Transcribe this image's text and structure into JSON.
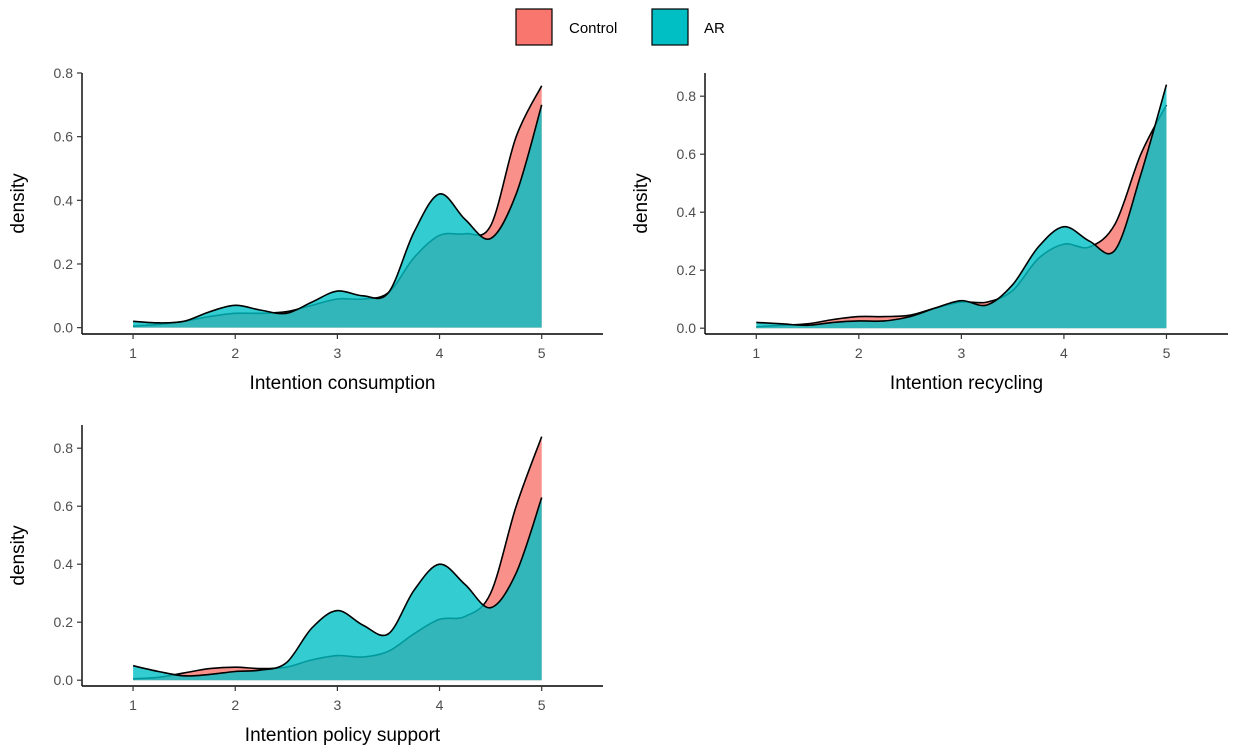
{
  "legend": {
    "items": [
      {
        "label": "Control",
        "color": "#F8766D"
      },
      {
        "label": "AR",
        "color": "#00BFC4"
      }
    ]
  },
  "chart_data": [
    {
      "type": "area",
      "xlabel": "Intention consumption",
      "ylabel": "density",
      "xlim": [
        0.5,
        5.6
      ],
      "ylim": [
        -0.02,
        0.8
      ],
      "xticks": [
        1,
        2,
        3,
        4,
        5
      ],
      "yticks": [
        0.0,
        0.2,
        0.4,
        0.6,
        0.8
      ],
      "ytick_labels": [
        "0.0",
        "0.2",
        "0.4",
        "0.6",
        "0.8"
      ],
      "series": [
        {
          "name": "Control",
          "x": [
            1,
            1.25,
            1.5,
            1.75,
            2,
            2.25,
            2.5,
            2.75,
            3,
            3.25,
            3.5,
            3.75,
            4,
            4.25,
            4.5,
            4.75,
            5
          ],
          "y": [
            0.005,
            0.01,
            0.02,
            0.035,
            0.045,
            0.045,
            0.05,
            0.07,
            0.09,
            0.09,
            0.11,
            0.22,
            0.29,
            0.295,
            0.32,
            0.6,
            0.76
          ]
        },
        {
          "name": "AR",
          "x": [
            1,
            1.25,
            1.5,
            1.75,
            2,
            2.25,
            2.5,
            2.75,
            3,
            3.25,
            3.5,
            3.75,
            4,
            4.25,
            4.5,
            4.75,
            5
          ],
          "y": [
            0.02,
            0.015,
            0.02,
            0.05,
            0.07,
            0.055,
            0.045,
            0.08,
            0.115,
            0.1,
            0.11,
            0.3,
            0.42,
            0.34,
            0.28,
            0.42,
            0.7
          ]
        }
      ]
    },
    {
      "type": "area",
      "xlabel": "Intention recycling",
      "ylabel": "density",
      "xlim": [
        0.5,
        5.6
      ],
      "ylim": [
        -0.02,
        0.88
      ],
      "xticks": [
        1,
        2,
        3,
        4,
        5
      ],
      "yticks": [
        0.0,
        0.2,
        0.4,
        0.6,
        0.8
      ],
      "ytick_labels": [
        "0.0",
        "0.2",
        "0.4",
        "0.6",
        "0.8"
      ],
      "series": [
        {
          "name": "Control",
          "x": [
            1,
            1.25,
            1.5,
            1.75,
            2,
            2.25,
            2.5,
            2.75,
            3,
            3.25,
            3.5,
            3.75,
            4,
            4.25,
            4.5,
            4.75,
            5
          ],
          "y": [
            0.005,
            0.01,
            0.015,
            0.03,
            0.04,
            0.04,
            0.045,
            0.07,
            0.09,
            0.09,
            0.13,
            0.24,
            0.29,
            0.28,
            0.36,
            0.6,
            0.77
          ]
        },
        {
          "name": "AR",
          "x": [
            1,
            1.25,
            1.5,
            1.75,
            2,
            2.25,
            2.5,
            2.75,
            3,
            3.25,
            3.5,
            3.75,
            4,
            4.25,
            4.5,
            4.75,
            5
          ],
          "y": [
            0.02,
            0.015,
            0.01,
            0.02,
            0.025,
            0.025,
            0.04,
            0.07,
            0.095,
            0.08,
            0.15,
            0.28,
            0.35,
            0.3,
            0.27,
            0.53,
            0.84
          ]
        }
      ]
    },
    {
      "type": "area",
      "xlabel": "Intention policy support",
      "ylabel": "density",
      "xlim": [
        0.5,
        5.6
      ],
      "ylim": [
        -0.02,
        0.88
      ],
      "xticks": [
        1,
        2,
        3,
        4,
        5
      ],
      "yticks": [
        0.0,
        0.2,
        0.4,
        0.6,
        0.8
      ],
      "ytick_labels": [
        "0.0",
        "0.2",
        "0.4",
        "0.6",
        "0.8"
      ],
      "series": [
        {
          "name": "Control",
          "x": [
            1,
            1.25,
            1.5,
            1.75,
            2,
            2.25,
            2.5,
            2.75,
            3,
            3.25,
            3.5,
            3.75,
            4,
            4.25,
            4.5,
            4.75,
            5
          ],
          "y": [
            0.005,
            0.01,
            0.025,
            0.04,
            0.045,
            0.04,
            0.045,
            0.07,
            0.085,
            0.08,
            0.1,
            0.16,
            0.21,
            0.22,
            0.3,
            0.6,
            0.84
          ]
        },
        {
          "name": "AR",
          "x": [
            1,
            1.25,
            1.5,
            1.75,
            2,
            2.25,
            2.5,
            2.75,
            3,
            3.25,
            3.5,
            3.75,
            4,
            4.25,
            4.5,
            4.75,
            5
          ],
          "y": [
            0.05,
            0.03,
            0.015,
            0.02,
            0.03,
            0.035,
            0.06,
            0.18,
            0.24,
            0.19,
            0.16,
            0.31,
            0.4,
            0.33,
            0.25,
            0.37,
            0.63
          ]
        }
      ]
    }
  ]
}
